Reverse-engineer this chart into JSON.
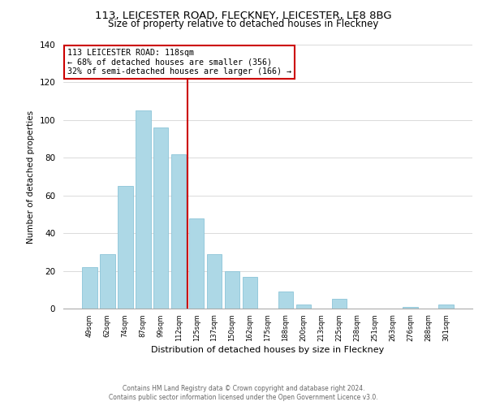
{
  "title": "113, LEICESTER ROAD, FLECKNEY, LEICESTER, LE8 8BG",
  "subtitle": "Size of property relative to detached houses in Fleckney",
  "xlabel": "Distribution of detached houses by size in Fleckney",
  "ylabel": "Number of detached properties",
  "bar_labels": [
    "49sqm",
    "62sqm",
    "74sqm",
    "87sqm",
    "99sqm",
    "112sqm",
    "125sqm",
    "137sqm",
    "150sqm",
    "162sqm",
    "175sqm",
    "188sqm",
    "200sqm",
    "213sqm",
    "225sqm",
    "238sqm",
    "251sqm",
    "263sqm",
    "276sqm",
    "288sqm",
    "301sqm"
  ],
  "bar_values": [
    22,
    29,
    65,
    105,
    96,
    82,
    48,
    29,
    20,
    17,
    0,
    9,
    2,
    0,
    5,
    0,
    0,
    0,
    1,
    0,
    2
  ],
  "bar_color": "#add8e6",
  "bar_edge_color": "#8cc4d8",
  "vline_color": "#cc0000",
  "annotation_title": "113 LEICESTER ROAD: 118sqm",
  "annotation_line1": "← 68% of detached houses are smaller (356)",
  "annotation_line2": "32% of semi-detached houses are larger (166) →",
  "annotation_box_color": "#ffffff",
  "annotation_box_edge": "#cc0000",
  "ylim": [
    0,
    140
  ],
  "footer1": "Contains HM Land Registry data © Crown copyright and database right 2024.",
  "footer2": "Contains public sector information licensed under the Open Government Licence v3.0."
}
